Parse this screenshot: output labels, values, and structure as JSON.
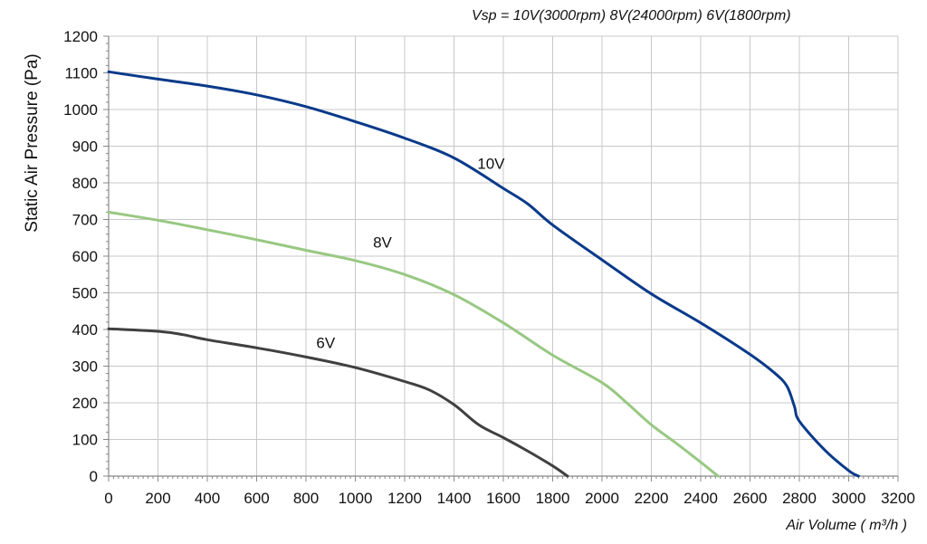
{
  "chart_data": {
    "type": "line",
    "title": "",
    "subtitle": "Vsp = 10V(3000rpm)  8V(24000rpm)   6V(1800rpm)",
    "xlabel": "Air Volume ( m³/h )",
    "ylabel": "Static Air Pressure  (Pa)",
    "xlim": [
      0,
      3200
    ],
    "ylim": [
      0,
      1200
    ],
    "x_ticks": [
      0,
      200,
      400,
      600,
      800,
      1000,
      1200,
      1400,
      1600,
      1800,
      2000,
      2200,
      2400,
      2600,
      2800,
      3000,
      3200
    ],
    "y_ticks": [
      0,
      100,
      200,
      300,
      400,
      500,
      600,
      700,
      800,
      900,
      1000,
      1100,
      1200
    ],
    "grid": true,
    "legend": "none",
    "series": [
      {
        "name": "10V",
        "color": "#0a3a8a",
        "label_at": [
          1550,
          838
        ],
        "points": [
          [
            0,
            1103
          ],
          [
            200,
            1083
          ],
          [
            400,
            1064
          ],
          [
            600,
            1040
          ],
          [
            800,
            1008
          ],
          [
            1000,
            967
          ],
          [
            1200,
            922
          ],
          [
            1400,
            868
          ],
          [
            1600,
            785
          ],
          [
            1700,
            742
          ],
          [
            1800,
            685
          ],
          [
            2000,
            590
          ],
          [
            2200,
            497
          ],
          [
            2400,
            418
          ],
          [
            2600,
            332
          ],
          [
            2700,
            281
          ],
          [
            2750,
            245
          ],
          [
            2780,
            190
          ],
          [
            2800,
            150
          ],
          [
            2900,
            73
          ],
          [
            3000,
            15
          ],
          [
            3040,
            0
          ]
        ]
      },
      {
        "name": "8V",
        "color": "#98c882",
        "label_at": [
          1110,
          624
        ],
        "points": [
          [
            0,
            720
          ],
          [
            200,
            698
          ],
          [
            400,
            672
          ],
          [
            600,
            645
          ],
          [
            800,
            616
          ],
          [
            1000,
            588
          ],
          [
            1200,
            550
          ],
          [
            1400,
            495
          ],
          [
            1600,
            418
          ],
          [
            1800,
            330
          ],
          [
            2000,
            255
          ],
          [
            2100,
            200
          ],
          [
            2200,
            140
          ],
          [
            2300,
            90
          ],
          [
            2400,
            38
          ],
          [
            2470,
            0
          ]
        ]
      },
      {
        "name": "6V",
        "color": "#404040",
        "label_at": [
          880,
          350
        ],
        "points": [
          [
            0,
            402
          ],
          [
            200,
            395
          ],
          [
            300,
            386
          ],
          [
            400,
            372
          ],
          [
            600,
            350
          ],
          [
            800,
            325
          ],
          [
            1000,
            296
          ],
          [
            1200,
            258
          ],
          [
            1300,
            235
          ],
          [
            1400,
            195
          ],
          [
            1500,
            140
          ],
          [
            1600,
            105
          ],
          [
            1700,
            68
          ],
          [
            1800,
            28
          ],
          [
            1860,
            0
          ]
        ]
      }
    ]
  }
}
